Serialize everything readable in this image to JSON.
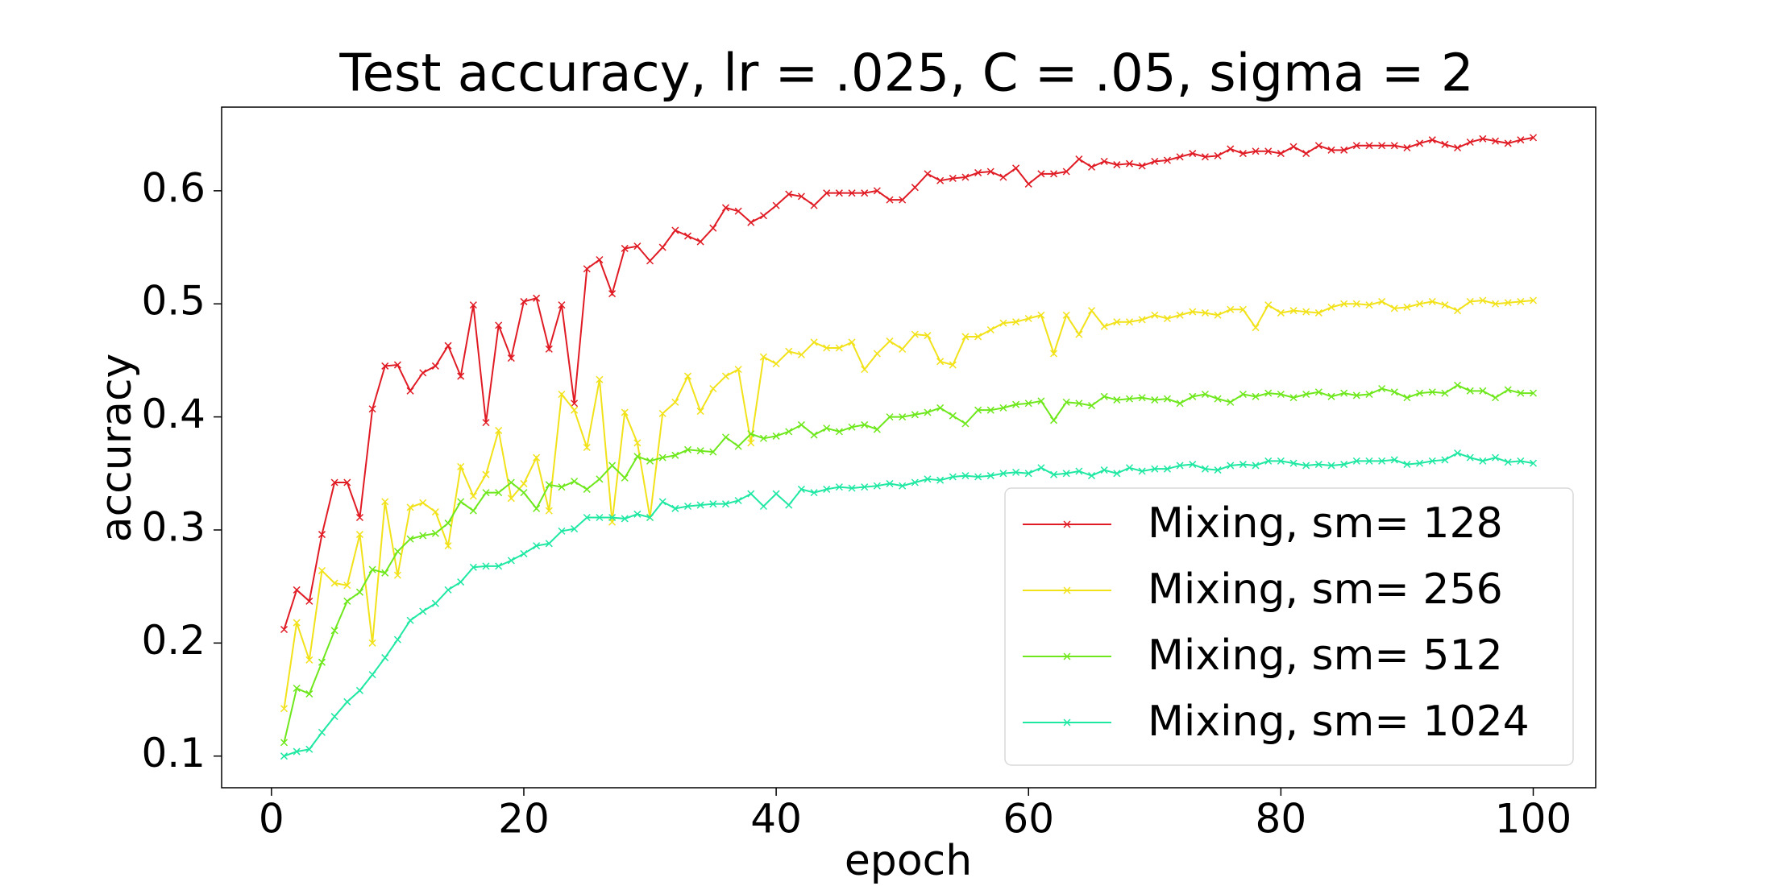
{
  "chart_data": {
    "type": "line",
    "title": "Test accuracy, lr = .025, C = .05, sigma = 2",
    "xlabel": "epoch",
    "ylabel": "accuracy",
    "x": [
      1,
      2,
      3,
      4,
      5,
      6,
      7,
      8,
      9,
      10,
      11,
      12,
      13,
      14,
      15,
      16,
      17,
      18,
      19,
      20,
      21,
      22,
      23,
      24,
      25,
      26,
      27,
      28,
      29,
      30,
      31,
      32,
      33,
      34,
      35,
      36,
      37,
      38,
      39,
      40,
      41,
      42,
      43,
      44,
      45,
      46,
      47,
      48,
      49,
      50,
      51,
      52,
      53,
      54,
      55,
      56,
      57,
      58,
      59,
      60,
      61,
      62,
      63,
      64,
      65,
      66,
      67,
      68,
      69,
      70,
      71,
      72,
      73,
      74,
      75,
      76,
      77,
      78,
      79,
      80,
      81,
      82,
      83,
      84,
      85,
      86,
      87,
      88,
      89,
      90,
      91,
      92,
      93,
      94,
      95,
      96,
      97,
      98,
      99,
      100
    ],
    "series": [
      {
        "name": "Mixing, sm= 128",
        "color": "#e01b24",
        "values": [
          0.212,
          0.247,
          0.237,
          0.296,
          0.342,
          0.342,
          0.311,
          0.407,
          0.445,
          0.446,
          0.423,
          0.439,
          0.445,
          0.463,
          0.436,
          0.499,
          0.395,
          0.481,
          0.452,
          0.502,
          0.505,
          0.46,
          0.499,
          0.412,
          0.531,
          0.539,
          0.509,
          0.549,
          0.551,
          0.538,
          0.55,
          0.565,
          0.56,
          0.555,
          0.567,
          0.585,
          0.582,
          0.572,
          0.578,
          0.587,
          0.597,
          0.595,
          0.587,
          0.598,
          0.598,
          0.598,
          0.598,
          0.6,
          0.592,
          0.592,
          0.603,
          0.615,
          0.609,
          0.611,
          0.612,
          0.616,
          0.617,
          0.612,
          0.62,
          0.606,
          0.615,
          0.615,
          0.617,
          0.628,
          0.621,
          0.626,
          0.623,
          0.624,
          0.622,
          0.626,
          0.627,
          0.63,
          0.633,
          0.63,
          0.631,
          0.637,
          0.633,
          0.635,
          0.635,
          0.633,
          0.639,
          0.633,
          0.64,
          0.636,
          0.636,
          0.64,
          0.64,
          0.64,
          0.64,
          0.638,
          0.642,
          0.645,
          0.641,
          0.638,
          0.643,
          0.646,
          0.644,
          0.642,
          0.645,
          0.647
        ]
      },
      {
        "name": "Mixing, sm= 256",
        "color": "#f2e21a",
        "values": [
          0.142,
          0.218,
          0.185,
          0.264,
          0.253,
          0.251,
          0.296,
          0.2,
          0.325,
          0.26,
          0.32,
          0.324,
          0.316,
          0.286,
          0.356,
          0.33,
          0.349,
          0.388,
          0.328,
          0.341,
          0.364,
          0.317,
          0.42,
          0.406,
          0.373,
          0.433,
          0.307,
          0.404,
          0.377,
          0.311,
          0.403,
          0.413,
          0.436,
          0.405,
          0.425,
          0.436,
          0.442,
          0.377,
          0.453,
          0.447,
          0.458,
          0.455,
          0.466,
          0.461,
          0.461,
          0.466,
          0.442,
          0.456,
          0.467,
          0.46,
          0.473,
          0.472,
          0.449,
          0.446,
          0.471,
          0.471,
          0.477,
          0.483,
          0.484,
          0.487,
          0.49,
          0.456,
          0.49,
          0.473,
          0.494,
          0.48,
          0.484,
          0.484,
          0.486,
          0.49,
          0.487,
          0.49,
          0.493,
          0.492,
          0.49,
          0.495,
          0.495,
          0.479,
          0.499,
          0.492,
          0.494,
          0.493,
          0.492,
          0.497,
          0.5,
          0.5,
          0.499,
          0.502,
          0.496,
          0.497,
          0.5,
          0.502,
          0.499,
          0.494,
          0.502,
          0.503,
          0.5,
          0.501,
          0.502,
          0.503
        ]
      },
      {
        "name": "Mixing, sm= 512",
        "color": "#6ee81c",
        "values": [
          0.112,
          0.16,
          0.155,
          0.183,
          0.211,
          0.237,
          0.245,
          0.265,
          0.262,
          0.281,
          0.292,
          0.295,
          0.297,
          0.306,
          0.325,
          0.317,
          0.333,
          0.333,
          0.342,
          0.333,
          0.319,
          0.34,
          0.338,
          0.343,
          0.336,
          0.345,
          0.357,
          0.346,
          0.365,
          0.361,
          0.364,
          0.366,
          0.371,
          0.37,
          0.369,
          0.382,
          0.374,
          0.385,
          0.381,
          0.383,
          0.387,
          0.393,
          0.384,
          0.39,
          0.387,
          0.391,
          0.393,
          0.389,
          0.4,
          0.4,
          0.402,
          0.404,
          0.408,
          0.401,
          0.394,
          0.406,
          0.406,
          0.408,
          0.411,
          0.412,
          0.414,
          0.397,
          0.413,
          0.412,
          0.41,
          0.418,
          0.415,
          0.416,
          0.417,
          0.415,
          0.416,
          0.412,
          0.418,
          0.42,
          0.416,
          0.413,
          0.42,
          0.418,
          0.421,
          0.42,
          0.417,
          0.42,
          0.422,
          0.418,
          0.421,
          0.419,
          0.42,
          0.425,
          0.422,
          0.417,
          0.421,
          0.422,
          0.421,
          0.428,
          0.423,
          0.423,
          0.417,
          0.424,
          0.421,
          0.421
        ]
      },
      {
        "name": "Mixing, sm= 1024",
        "color": "#1fe8a2",
        "values": [
          0.1,
          0.104,
          0.106,
          0.121,
          0.135,
          0.148,
          0.158,
          0.172,
          0.187,
          0.203,
          0.22,
          0.228,
          0.235,
          0.247,
          0.254,
          0.267,
          0.268,
          0.268,
          0.273,
          0.279,
          0.286,
          0.288,
          0.299,
          0.301,
          0.311,
          0.311,
          0.311,
          0.31,
          0.314,
          0.311,
          0.325,
          0.319,
          0.321,
          0.322,
          0.323,
          0.323,
          0.326,
          0.332,
          0.321,
          0.332,
          0.322,
          0.336,
          0.333,
          0.336,
          0.338,
          0.337,
          0.338,
          0.339,
          0.341,
          0.339,
          0.342,
          0.345,
          0.344,
          0.347,
          0.348,
          0.347,
          0.348,
          0.35,
          0.351,
          0.35,
          0.355,
          0.349,
          0.35,
          0.352,
          0.348,
          0.353,
          0.35,
          0.355,
          0.352,
          0.354,
          0.354,
          0.357,
          0.358,
          0.354,
          0.353,
          0.357,
          0.358,
          0.357,
          0.361,
          0.361,
          0.359,
          0.357,
          0.358,
          0.357,
          0.358,
          0.361,
          0.361,
          0.361,
          0.362,
          0.358,
          0.359,
          0.361,
          0.362,
          0.368,
          0.364,
          0.361,
          0.364,
          0.36,
          0.361,
          0.359
        ]
      }
    ],
    "xlim": [
      -3.95,
      104.95
    ],
    "ylim": [
      0.072,
      0.674
    ],
    "xticks": [
      0,
      20,
      40,
      60,
      80,
      100
    ],
    "yticks": [
      0.1,
      0.2,
      0.3,
      0.4,
      0.5,
      0.6
    ],
    "markers": true,
    "grid": false,
    "legend": "lower right"
  }
}
